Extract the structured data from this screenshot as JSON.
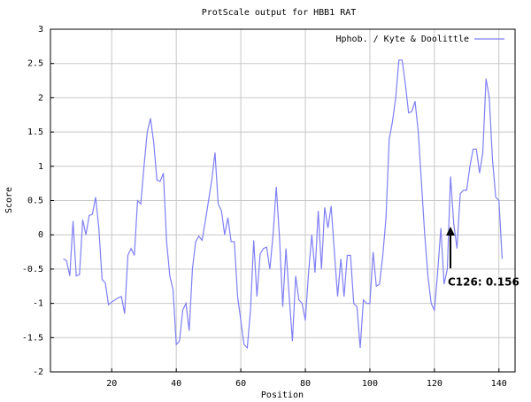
{
  "chart_data": {
    "type": "line",
    "title": "ProtScale output for HBB1 RAT",
    "xlabel": "Position",
    "ylabel": "Score",
    "annotation": "C126: 0.156",
    "xlim": [
      1,
      145
    ],
    "ylim": [
      -2,
      3
    ],
    "xticks": [
      20,
      40,
      60,
      80,
      100,
      120,
      140
    ],
    "yticks": [
      -2,
      -1.5,
      -1,
      -0.5,
      0,
      0.5,
      1,
      1.5,
      2,
      2.5,
      3
    ],
    "grid": true,
    "legend": "upper right",
    "x": [
      5,
      6,
      7,
      8,
      9,
      10,
      11,
      12,
      13,
      14,
      15,
      16,
      17,
      18,
      19,
      20,
      21,
      22,
      23,
      24,
      25,
      26,
      27,
      28,
      29,
      30,
      31,
      32,
      33,
      34,
      35,
      36,
      37,
      38,
      39,
      40,
      41,
      42,
      43,
      44,
      45,
      46,
      47,
      48,
      49,
      50,
      51,
      52,
      53,
      54,
      55,
      56,
      57,
      58,
      59,
      60,
      61,
      62,
      63,
      64,
      65,
      66,
      67,
      68,
      69,
      70,
      71,
      72,
      73,
      74,
      75,
      76,
      77,
      78,
      79,
      80,
      81,
      82,
      83,
      84,
      85,
      86,
      87,
      88,
      89,
      90,
      91,
      92,
      93,
      94,
      95,
      96,
      97,
      98,
      99,
      100,
      101,
      102,
      103,
      104,
      105,
      106,
      107,
      108,
      109,
      110,
      111,
      112,
      113,
      114,
      115,
      116,
      117,
      118,
      119,
      120,
      121,
      122,
      123,
      124,
      125,
      126,
      127,
      128,
      129,
      130,
      131,
      132,
      133,
      134,
      135,
      136,
      137,
      138,
      139,
      140,
      141
    ],
    "series": [
      {
        "name": "Hphob. / Kyte & Doolittle",
        "color": "#7f7ff5",
        "values": [
          -0.35,
          -0.38,
          -0.6,
          0.2,
          -0.6,
          -0.58,
          0.22,
          0,
          0.28,
          0.3,
          0.55,
          0.1,
          -0.65,
          -0.7,
          -1.02,
          -0.98,
          -0.95,
          -0.92,
          -0.9,
          -1.15,
          -0.3,
          -0.2,
          -0.3,
          0.5,
          0.45,
          1.0,
          1.5,
          1.7,
          1.35,
          0.8,
          0.78,
          0.9,
          -0.1,
          -0.6,
          -0.8,
          -1.6,
          -1.55,
          -1.1,
          -1.0,
          -1.4,
          -0.5,
          -0.1,
          -0.02,
          -0.08,
          0.2,
          0.5,
          0.8,
          1.2,
          0.45,
          0.35,
          0,
          0.25,
          -0.1,
          -0.1,
          -0.9,
          -1.25,
          -1.6,
          -1.65,
          -1.1,
          -0.08,
          -0.9,
          -0.28,
          -0.2,
          -0.18,
          -0.5,
          0,
          0.7,
          -0.05,
          -1.05,
          -0.2,
          -0.9,
          -1.55,
          -0.6,
          -0.95,
          -1.0,
          -1.25,
          -0.55,
          0,
          -0.55,
          0.35,
          -0.5,
          0.4,
          0.1,
          0.42,
          -0.25,
          -0.9,
          -0.35,
          -0.9,
          -0.3,
          -0.3,
          -1.0,
          -1.05,
          -1.65,
          -0.95,
          -1.0,
          -1.0,
          -0.25,
          -0.75,
          -0.72,
          -0.3,
          0.25,
          1.4,
          1.65,
          2.0,
          2.55,
          2.55,
          2.2,
          1.78,
          1.8,
          1.95,
          1.5,
          0.75,
          0,
          -0.6,
          -1.0,
          -1.1,
          -0.55,
          0.1,
          -0.72,
          -0.5,
          0.85,
          0.156,
          -0.2,
          0.6,
          0.65,
          0.65,
          1.0,
          1.25,
          1.25,
          0.9,
          1.2,
          2.28,
          2.0,
          1.1,
          0.55,
          0.5,
          -0.35
        ]
      }
    ]
  }
}
